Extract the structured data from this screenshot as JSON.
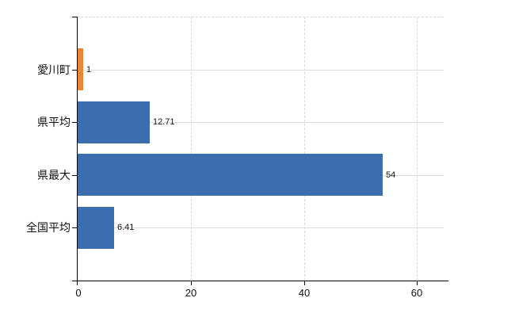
{
  "chart_data": {
    "type": "bar",
    "orientation": "horizontal",
    "title": "",
    "categories": [
      "愛川町",
      "県平均",
      "県最大",
      "全国平均"
    ],
    "values": [
      1,
      12.71,
      54,
      6.41
    ],
    "value_labels": [
      "1",
      "12.71",
      "54",
      "6.41"
    ],
    "bar_colors": [
      "#EB8533",
      "#3C6DAF",
      "#3C6DAF",
      "#3C6DAF"
    ],
    "x_tick_labels": [
      "0",
      "20",
      "40",
      "60"
    ],
    "x_tick_values": [
      0,
      20,
      40,
      60
    ],
    "xlim": [
      0,
      65
    ],
    "grid": true,
    "legend_position": "none"
  },
  "colors": {
    "background": "#ffffff",
    "bar_blue": "#3C6DAF",
    "bar_orange": "#EB8533",
    "axis_line": "#000000",
    "grid_horizontal": "#d9e0d9",
    "grid_vertical": "#d9dadf",
    "frame_dashed": "#d8d8d8",
    "text": "#111111"
  }
}
